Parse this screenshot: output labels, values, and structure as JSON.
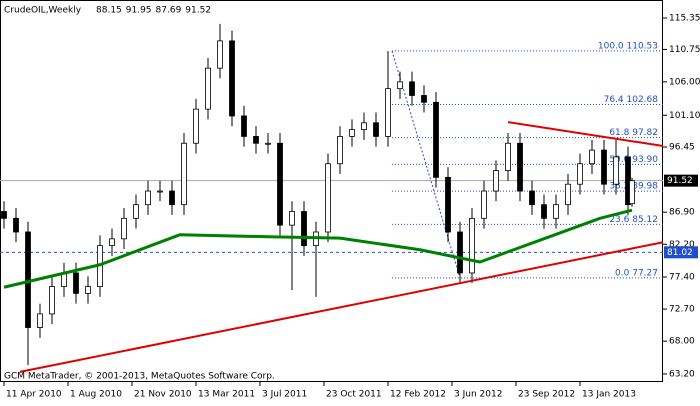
{
  "chart_data": {
    "type": "candlestick",
    "title": "CrudeOIL,Weekly",
    "footer": "GCM MetaTrader, © 2001-2013, MetaQuotes Software Corp.",
    "xlim": [
      -1,
      164.75
    ],
    "ylim": [
      62.02,
      117.99
    ],
    "xticks": [
      {
        "value": 0,
        "label": "11 Apr 2010"
      },
      {
        "value": 16,
        "label": "1 Aug 2010"
      },
      {
        "value": 32,
        "label": "21 Nov 2010"
      },
      {
        "value": 48,
        "label": "13 Mar 2011"
      },
      {
        "value": 64,
        "label": "3 Jul 2011"
      },
      {
        "value": 80,
        "label": "23 Oct 2011"
      },
      {
        "value": 96,
        "label": "12 Feb 2012"
      },
      {
        "value": 112,
        "label": "3 Jun 2012"
      },
      {
        "value": 128,
        "label": "23 Sep 2012"
      },
      {
        "value": 144,
        "label": "13 Jan 2013"
      }
    ],
    "yticks": [
      115.35,
      110.75,
      {
        "value": 106,
        "label": "106.00"
      },
      {
        "value": 101.1,
        "label": "101.10"
      },
      96.45,
      {
        "value": 86.9,
        "label": "86.90"
      },
      {
        "value": 82.2,
        "label": "82.20"
      },
      {
        "value": 77.4,
        "label": "77.40"
      },
      {
        "value": 72.7,
        "label": "72.70"
      },
      {
        "value": 68,
        "label": "68.00"
      },
      {
        "value": 63.2,
        "label": "63.20"
      }
    ],
    "x": [
      0,
      3,
      6,
      9,
      12,
      15,
      18,
      21,
      24,
      27,
      30,
      33,
      36,
      39,
      42,
      45,
      48,
      51,
      54,
      57,
      60,
      63,
      66,
      69,
      72,
      75,
      78,
      81,
      84,
      87,
      90,
      93,
      96,
      99,
      102,
      105,
      108,
      111,
      114,
      117,
      120,
      123,
      126,
      129,
      132,
      135,
      138,
      141,
      144,
      147,
      150,
      153,
      156,
      157
    ],
    "open": [
      87,
      86,
      84,
      70,
      72,
      76,
      78,
      75,
      76,
      82,
      83,
      86,
      88,
      90,
      90,
      88,
      97,
      102,
      108,
      112,
      101,
      98,
      97,
      97,
      85,
      87,
      82,
      84,
      94,
      98,
      99,
      100,
      98,
      105,
      106,
      104,
      103,
      92,
      84,
      78,
      86,
      90,
      93,
      97,
      90,
      88,
      86,
      88,
      91,
      94,
      96,
      91,
      95,
      88.15
    ],
    "high": [
      88.5,
      87.5,
      85.5,
      73.5,
      77.5,
      79.5,
      79.5,
      77.5,
      83.5,
      84.5,
      87.5,
      89.5,
      91.5,
      91.5,
      91.5,
      98.5,
      103.5,
      109.5,
      114.5,
      113.5,
      102.5,
      99.5,
      98.5,
      98.5,
      88.5,
      88.5,
      85.5,
      95.5,
      99.5,
      100.5,
      101.5,
      101.5,
      110.5,
      107.5,
      107.5,
      105.5,
      104.5,
      93.5,
      85.5,
      87.5,
      91.5,
      94.5,
      98.5,
      98.5,
      91.5,
      89.5,
      89.5,
      92.5,
      95.5,
      97.5,
      97.5,
      97.5,
      96.5,
      91.95
    ],
    "low": [
      84.5,
      82.5,
      64.5,
      68.5,
      70.5,
      74.5,
      73.5,
      73.5,
      74.5,
      80.5,
      81.5,
      84.5,
      86.5,
      88.5,
      86.5,
      86.5,
      95.5,
      100.5,
      106.5,
      99.5,
      96.5,
      95.5,
      95.5,
      83.5,
      75.5,
      80.5,
      74.5,
      82.5,
      92.5,
      96.5,
      97.5,
      96.5,
      96.5,
      103.5,
      102.5,
      101.5,
      90.5,
      82.5,
      76.5,
      76.5,
      84.5,
      88.5,
      91.5,
      88.5,
      86.5,
      84.5,
      84.5,
      86.5,
      89.5,
      92.5,
      89.5,
      89.5,
      86.5,
      87.69
    ],
    "close": [
      86,
      84,
      70,
      72,
      76,
      78,
      75,
      76,
      82,
      83,
      86,
      88,
      90,
      90,
      88,
      97,
      102,
      108,
      112,
      101,
      98,
      97,
      97,
      85,
      87,
      82,
      84,
      94,
      98,
      99,
      100,
      98,
      105,
      106,
      104,
      103,
      92,
      84,
      78,
      86,
      90,
      93,
      97,
      90,
      88,
      86,
      88,
      91,
      94,
      96,
      91,
      95,
      88,
      91.52
    ],
    "moving_average": {
      "color": "#008000",
      "x": [
        0,
        24,
        44,
        66,
        84,
        104,
        119,
        134,
        149,
        157
      ],
      "values": [
        75.9,
        79.2,
        83.6,
        83.3,
        83.1,
        81.4,
        79.6,
        82.8,
        86.0,
        87.2
      ]
    },
    "trendlines": [
      {
        "color": "#e00000",
        "x": [
          4,
          164.75
        ],
        "y": [
          63.5,
          82.5
        ]
      },
      {
        "color": "#e00000",
        "x": [
          126,
          164.75
        ],
        "y": [
          100.1,
          96.6
        ]
      }
    ],
    "level_line": {
      "value": 81.02,
      "color": "#1f4fc8"
    },
    "fibonacci": {
      "color": "#1f4fc8",
      "x": [
        97,
        114
      ],
      "levels": [
        {
          "value": 110.53,
          "label": "100.0 110.53"
        },
        {
          "value": 102.68,
          "label": "76.4 102.68"
        },
        {
          "value": 97.82,
          "label": "61.8 97.82"
        },
        {
          "value": 93.9,
          "label": "50.0 93.90"
        },
        {
          "value": 89.98,
          "label": "38.2 89.98"
        },
        {
          "value": 85.12,
          "label": "23.6 85.12"
        },
        {
          "value": 77.27,
          "label": "0.0 77.27"
        }
      ]
    }
  }
}
